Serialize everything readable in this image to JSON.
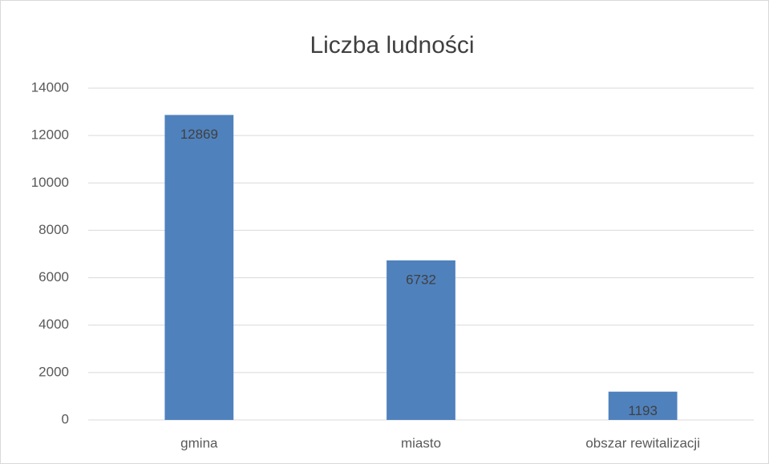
{
  "chart_data": {
    "type": "bar",
    "title": "Liczba ludności",
    "categories": [
      "gmina",
      "miasto",
      "obszar rewitalizacji"
    ],
    "values": [
      12869,
      6732,
      1193
    ],
    "color": "#4f81bd",
    "ylim": [
      0,
      14000
    ],
    "yticks": [
      0,
      2000,
      4000,
      6000,
      8000,
      10000,
      12000,
      14000
    ],
    "grid": true
  }
}
